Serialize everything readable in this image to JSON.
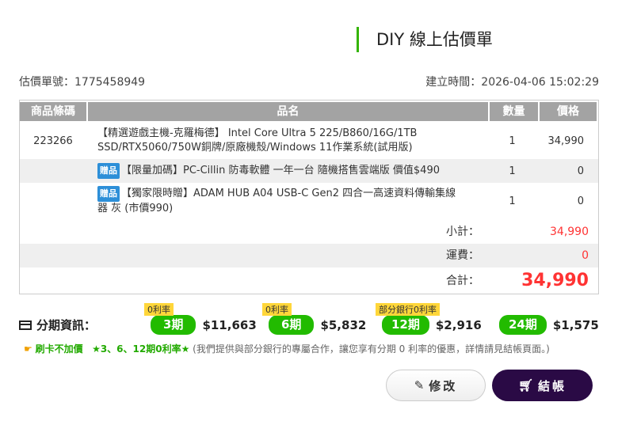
{
  "title": "DIY 線上估價單",
  "quote_no": "估價單號：1775458949",
  "created": "建立時間：2026-04-06 15:02:29",
  "table": {
    "headers": [
      "商品條碼",
      "品名",
      "數量",
      "價格"
    ],
    "rows": [
      {
        "code": "223266",
        "name": "【精選遊戲主機-克羅梅德】 Intel Core Ultra 5 225/B860/16G/1TB SSD/RTX5060/750W銅牌/原廠機殼/Windows 11作業系統(試用版)",
        "qty": "1",
        "price": "34,990",
        "gift": ""
      },
      {
        "code": "",
        "name": "【限量加碼】PC-Cillin 防毒軟體 一年一台 隨機搭售雲端版 價值$490",
        "qty": "1",
        "price": "0",
        "gift": "贈品"
      },
      {
        "code": "",
        "name": "【獨家限時贈】ADAM HUB A04 USB-C Gen2 四合一高速資料傳輸集線器 灰 (市價990)",
        "qty": "1",
        "price": "0",
        "gift": "贈品"
      }
    ]
  },
  "summary": {
    "subtotal_label": "小計：",
    "subtotal": "34,990",
    "shipping_label": "運費：",
    "shipping": "0",
    "total_label": "合計：",
    "total": "34,990"
  },
  "installment": {
    "label": "分期資訊：",
    "plans": [
      {
        "term": "3期",
        "amount": "$11,663",
        "tag": "0利率"
      },
      {
        "term": "6期",
        "amount": "$5,832",
        "tag": "0利率"
      },
      {
        "term": "12期",
        "amount": "$2,916",
        "tag": "部分銀行0利率"
      },
      {
        "term": "24期",
        "amount": "$1,575",
        "tag": ""
      }
    ]
  },
  "note": {
    "a": "刷卡不加價",
    "b": "★3、6、12期0利率★",
    "c": "(我們提供與部分銀行的專屬合作，讓您享有分期 0 利率的優惠，詳情請見結帳頁面。)"
  },
  "buttons": {
    "edit": "修改",
    "checkout": "結帳"
  },
  "colors": {
    "accent": "#22bb00",
    "price_red": "#ff2222",
    "checkout_bg": "#2a0a45"
  }
}
